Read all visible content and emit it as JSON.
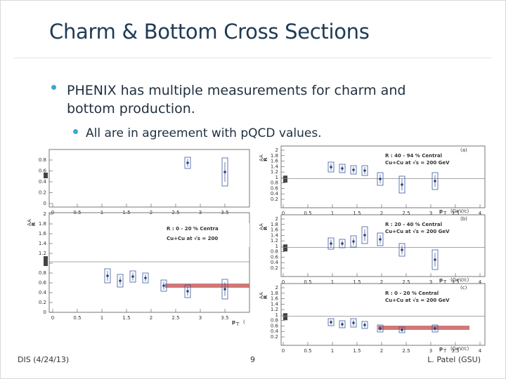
{
  "slide": {
    "title": "Charm & Bottom Cross Sections",
    "bullets": [
      {
        "text": "PHENIX has multiple measurements for charm and bottom production.",
        "sub": [
          "All are in agreement with pQCD values."
        ]
      }
    ],
    "left_plot": {
      "x_ticks": [
        "0",
        "0.5",
        "1",
        "1.5",
        "2",
        "2.5",
        "3",
        "3.5"
      ],
      "y_ticks": [
        "2",
        "1.8",
        "1.6",
        "1.4",
        "1.2",
        "1",
        "0.8",
        "0.6",
        "0.4",
        "0.2",
        "0"
      ],
      "y_ticks_top": [
        "0.8",
        "0.6",
        "0.4",
        "0.2",
        "0"
      ],
      "y_label": "R",
      "y_label_sub": "AA",
      "x_label": "p",
      "x_label_sub": "T",
      "x_label_unit": "(",
      "legend": [
        "R  : 0 - 20 % Centra",
        "Cu+Cu at √s   = 200"
      ]
    },
    "right_plot": {
      "x_ticks": [
        "0",
        "0.5",
        "1",
        "1.5",
        "2",
        "2.5",
        "3",
        "3.5",
        "4"
      ],
      "y_ticks": [
        "2",
        "1.8",
        "1.6",
        "1.4",
        "1.2",
        "1",
        "0.8",
        "0.6",
        "0.4",
        "0.2"
      ],
      "y_label": "R",
      "y_label_sub": "AA",
      "x_label": "p",
      "x_label_sub": "T",
      "x_label_unit": "(GeV/c)",
      "panels": [
        {
          "tag": "(a)",
          "legend": [
            "R  : 40 - 94 % Central",
            "Cu+Cu at √s   = 200 GeV"
          ]
        },
        {
          "tag": "(b)",
          "legend": [
            "R  : 20 - 40 % Central",
            "Cu+Cu at √s   = 200 GeV"
          ]
        },
        {
          "tag": "(c)",
          "legend": [
            "R  : 0 - 20 % Central",
            "Cu+Cu at √s   = 200 GeV"
          ]
        }
      ]
    },
    "footer": {
      "left": "DIS (4/24/13)",
      "page": "9",
      "right": "L. Patel (GSU)"
    }
  }
}
